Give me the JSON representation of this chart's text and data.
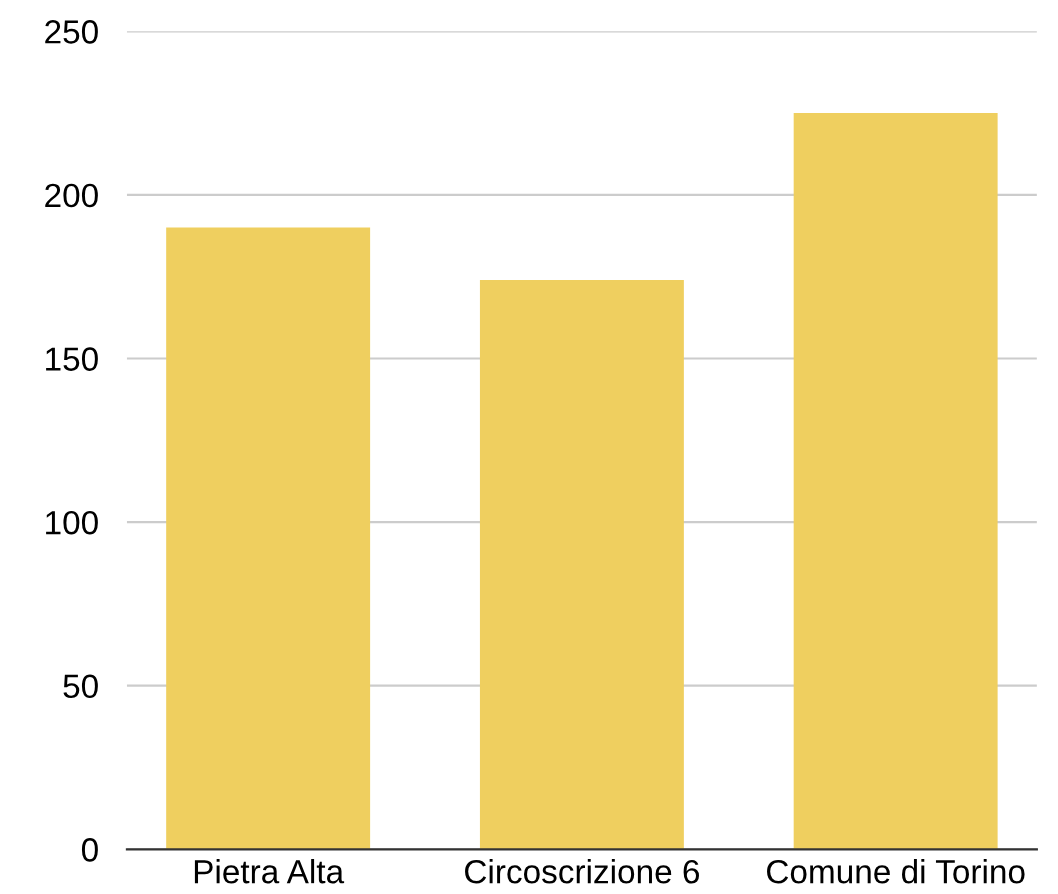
{
  "chart_data": {
    "type": "bar",
    "categories": [
      "Pietra Alta",
      "Circoscrizione 6",
      "Comune di Torino"
    ],
    "values": [
      190,
      174,
      225
    ],
    "color": "#efcf5f",
    "ylim": [
      0,
      250
    ],
    "yticks": [
      0,
      50,
      100,
      150,
      200,
      250
    ],
    "grid": "y",
    "legend": false
  }
}
